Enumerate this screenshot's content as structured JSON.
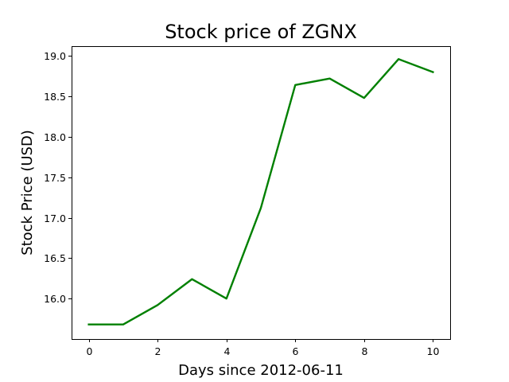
{
  "chart_data": {
    "type": "line",
    "title": "Stock price of ZGNX",
    "xlabel": "Days since 2012-06-11",
    "ylabel": "Stock Price (USD)",
    "x": [
      0,
      1,
      2,
      3,
      4,
      5,
      6,
      7,
      8,
      9,
      10
    ],
    "series": [
      {
        "values": [
          15.68,
          15.68,
          15.92,
          16.24,
          16.0,
          17.12,
          18.64,
          18.72,
          18.48,
          18.96,
          18.8
        ],
        "color": "#008000"
      }
    ],
    "xlim": [
      -0.5,
      10.5
    ],
    "ylim": [
      15.5,
      19.12
    ],
    "xticks": [
      0,
      2,
      4,
      6,
      8,
      10
    ],
    "xtick_labels": [
      "0",
      "2",
      "4",
      "6",
      "8",
      "10"
    ],
    "yticks": [
      16.0,
      16.5,
      17.0,
      17.5,
      18.0,
      18.5,
      19.0
    ],
    "ytick_labels": [
      "16.0",
      "16.5",
      "17.0",
      "17.5",
      "18.0",
      "18.5",
      "19.0"
    ],
    "grid": false,
    "legend": "none"
  }
}
